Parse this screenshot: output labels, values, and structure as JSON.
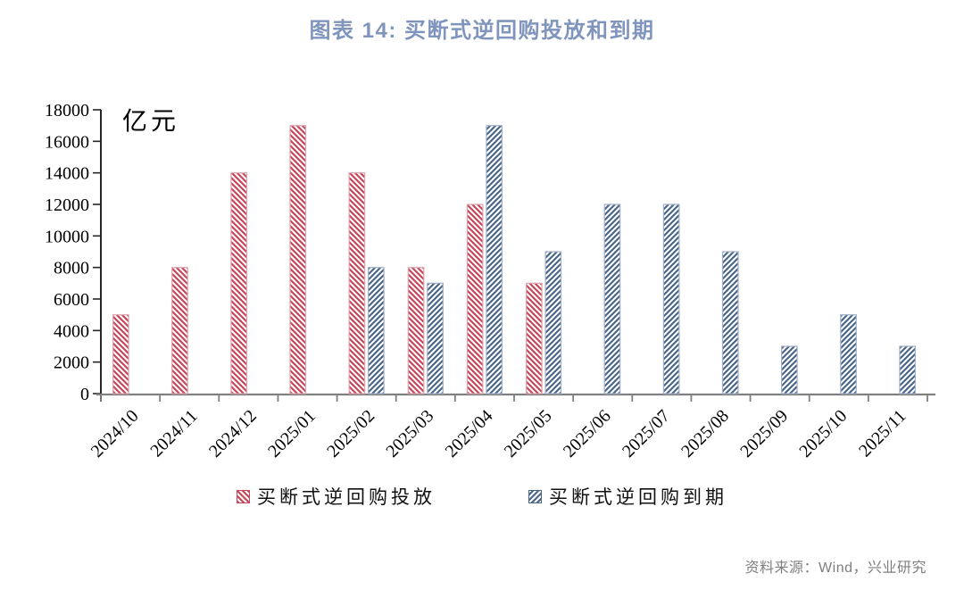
{
  "page": {
    "source_label": "资料来源：Wind，兴业研究"
  },
  "colors": {
    "title_text": "#8095BD",
    "supply_hatch": "#C9465A",
    "supply_border": "#DCA4AE",
    "maturity_hatch": "#4A6688",
    "maturity_border": "#A3B1C8",
    "x_axis": "#808080",
    "y_axis": "#262626",
    "tick_label_text": "#000000",
    "source_text": "#7F7F7F"
  },
  "chart_data": {
    "type": "bar",
    "title": "图表 14: 买断式逆回购投放和到期",
    "unit_label": "亿元",
    "xlabel": "",
    "ylabel": "亿元",
    "categories": [
      "2024/10",
      "2024/11",
      "2024/12",
      "2025/01",
      "2025/02",
      "2025/03",
      "2025/04",
      "2025/05",
      "2025/06",
      "2025/07",
      "2025/08",
      "2025/09",
      "2025/10",
      "2025/11"
    ],
    "series": [
      {
        "name": "买断式逆回购投放",
        "hatch": "backslash",
        "color": "#C9465A",
        "border": "#DCA4AE",
        "values": [
          5000,
          8000,
          14000,
          17000,
          14000,
          8000,
          12000,
          7000,
          null,
          null,
          null,
          null,
          null,
          null
        ]
      },
      {
        "name": "买断式逆回购到期",
        "hatch": "slash",
        "color": "#4A6688",
        "border": "#A3B1C8",
        "values": [
          null,
          null,
          null,
          null,
          8000,
          7000,
          17000,
          9000,
          12000,
          12000,
          9000,
          3000,
          5000,
          3000
        ]
      }
    ],
    "ylim": [
      0,
      18000
    ],
    "ytick_step": 2000,
    "grid": false,
    "legend_position": "bottom",
    "bar_orientation": "vertical",
    "x_label_rotation_deg": -45
  }
}
